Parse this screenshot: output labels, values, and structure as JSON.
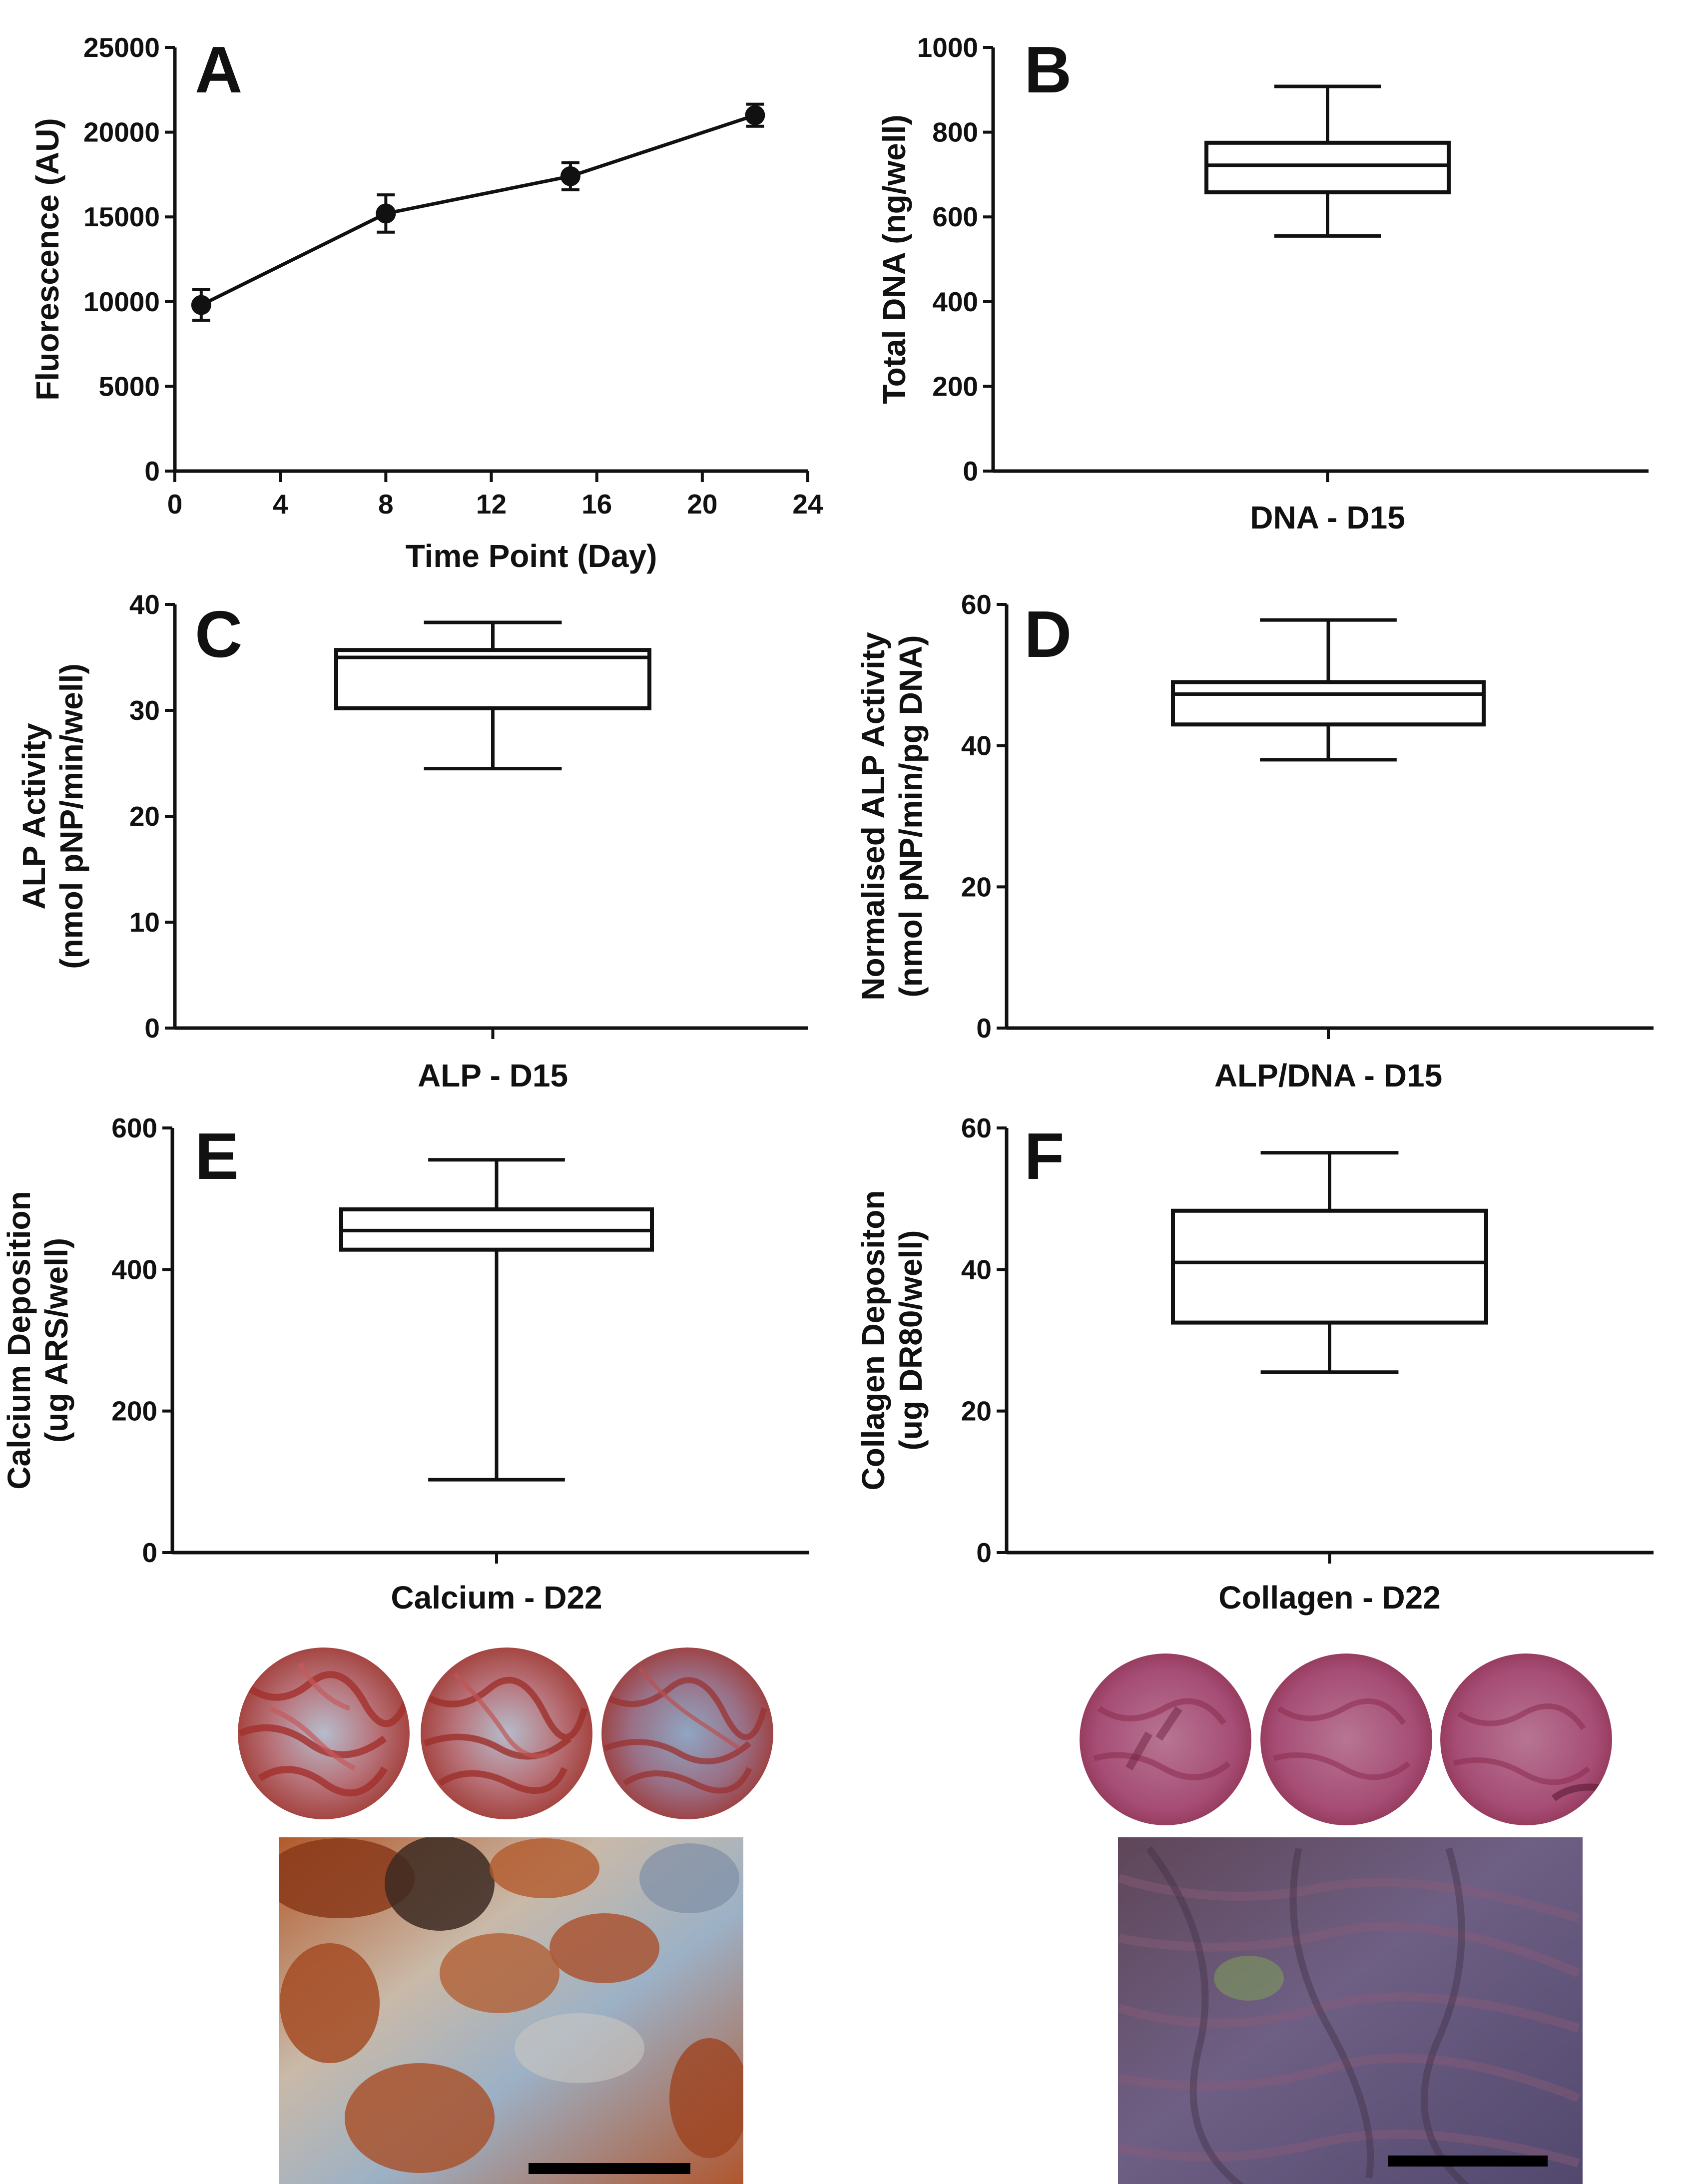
{
  "chart_data": [
    {
      "panel": "A",
      "type": "line",
      "xlabel": "Time Point (Day)",
      "ylabel": "Fluorescence (AU)",
      "xlim": [
        0,
        24
      ],
      "ylim": [
        0,
        25000
      ],
      "xticks": [
        0,
        4,
        8,
        12,
        16,
        20,
        24
      ],
      "yticks": [
        0,
        5000,
        10000,
        15000,
        20000,
        25000
      ],
      "x": [
        1,
        8,
        15,
        22
      ],
      "y": [
        9800,
        15200,
        17400,
        21000
      ],
      "err": [
        900,
        1100,
        800,
        650
      ]
    },
    {
      "panel": "B",
      "type": "box",
      "category": "DNA - D15",
      "ylabel": [
        "Total DNA (ng/well)"
      ],
      "ylim": [
        0,
        1000
      ],
      "yticks": [
        0,
        200,
        400,
        600,
        800,
        1000
      ],
      "min": 555,
      "q1": 658,
      "median": 722,
      "q3": 775,
      "max": 908
    },
    {
      "panel": "C",
      "type": "box",
      "category": "ALP - D15",
      "ylabel": [
        "ALP Activity",
        "(nmol pNP/min/well)"
      ],
      "ylim": [
        0,
        40
      ],
      "yticks": [
        0,
        10,
        20,
        30,
        40
      ],
      "min": 24.5,
      "q1": 30.2,
      "median": 35.0,
      "q3": 35.7,
      "max": 38.3
    },
    {
      "panel": "D",
      "type": "box",
      "category": "ALP/DNA - D15",
      "ylabel": [
        "Normalised ALP Activity",
        "(nmol pNP/min/pg DNA)"
      ],
      "ylim": [
        0,
        60
      ],
      "yticks": [
        0,
        20,
        40,
        60
      ],
      "min": 38,
      "q1": 43,
      "median": 47.3,
      "q3": 49,
      "max": 57.8
    },
    {
      "panel": "E",
      "type": "box",
      "category": "Calcium - D22",
      "ylabel": [
        "Calcium  Deposition",
        "(ug  ARS/well)"
      ],
      "ylim": [
        0,
        600
      ],
      "yticks": [
        0,
        200,
        400,
        600
      ],
      "min": 103,
      "q1": 428,
      "median": 455,
      "q3": 485,
      "max": 555
    },
    {
      "panel": "F",
      "type": "box",
      "category": "Collagen - D22",
      "ylabel": [
        "Collagen  Depositon",
        "(ug DR80/well)"
      ],
      "ylim": [
        0,
        60
      ],
      "yticks": [
        0,
        20,
        40,
        60
      ],
      "min": 25.5,
      "q1": 32.5,
      "median": 41,
      "q3": 48.3,
      "max": 56.5
    }
  ],
  "colors": {
    "ink": "#111111",
    "calcium_stain": "#a8302a",
    "calcium_bg": "#8fa3b8",
    "collagen_stain": "#a8325a",
    "collagen_bg": "#7c6f9c",
    "scale_bar": "#000000"
  }
}
